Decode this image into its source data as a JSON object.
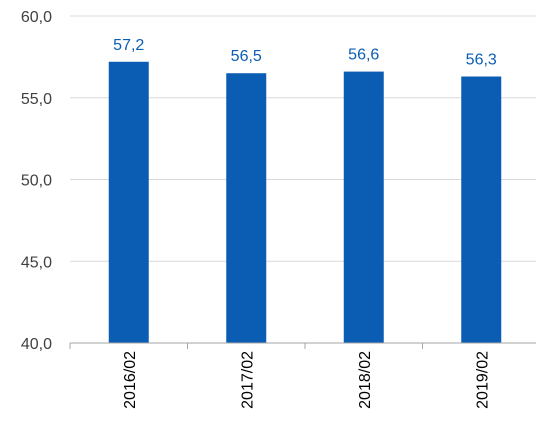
{
  "chart_data": {
    "type": "bar",
    "categories": [
      "2016/02",
      "2017/02",
      "2018/02",
      "2019/02"
    ],
    "values": [
      57.2,
      56.5,
      56.6,
      56.3
    ],
    "value_labels": [
      "57,2",
      "56,5",
      "56,6",
      "56,3"
    ],
    "ylim": [
      40,
      60
    ],
    "y_ticks": [
      40,
      45,
      50,
      55,
      60
    ],
    "y_tick_labels": [
      "40,0",
      "45,0",
      "50,0",
      "55,0",
      "60,0"
    ],
    "grid": true,
    "legend": "none",
    "x_tick_rotation": "vertical",
    "colors": {
      "bar": "#0b5db4",
      "data_label": "#0b5db4",
      "grid": "#d9d9d9",
      "axis": "#a6a6a6"
    }
  }
}
